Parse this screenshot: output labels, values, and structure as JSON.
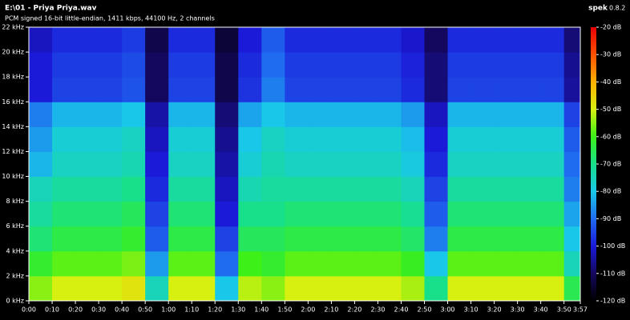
{
  "chart_data": {
    "type": "heatmap",
    "title": "E:\\01 - Priya Priya.wav",
    "subtitle": "PCM signed 16-bit little-endian, 1411 kbps, 44100 Hz, 2 channels",
    "app": "spek",
    "version": "0.8.2",
    "xlim": [
      0,
      237
    ],
    "xticks": [
      {
        "value": 0,
        "label": "0:00"
      },
      {
        "value": 10,
        "label": "0:10"
      },
      {
        "value": 20,
        "label": "0:20"
      },
      {
        "value": 30,
        "label": "0:30"
      },
      {
        "value": 40,
        "label": "0:40"
      },
      {
        "value": 50,
        "label": "0:50"
      },
      {
        "value": 60,
        "label": "1:00"
      },
      {
        "value": 70,
        "label": "1:10"
      },
      {
        "value": 80,
        "label": "1:20"
      },
      {
        "value": 90,
        "label": "1:30"
      },
      {
        "value": 100,
        "label": "1:40"
      },
      {
        "value": 110,
        "label": "1:50"
      },
      {
        "value": 120,
        "label": "2:00"
      },
      {
        "value": 130,
        "label": "2:10"
      },
      {
        "value": 140,
        "label": "2:20"
      },
      {
        "value": 150,
        "label": "2:30"
      },
      {
        "value": 160,
        "label": "2:40"
      },
      {
        "value": 170,
        "label": "2:50"
      },
      {
        "value": 180,
        "label": "3:00"
      },
      {
        "value": 190,
        "label": "3:10"
      },
      {
        "value": 200,
        "label": "3:20"
      },
      {
        "value": 210,
        "label": "3:30"
      },
      {
        "value": 220,
        "label": "3:40"
      },
      {
        "value": 230,
        "label": "3:50"
      },
      {
        "value": 237,
        "label": "3:57"
      }
    ],
    "ylim": [
      0,
      22
    ],
    "yticks": [
      {
        "value": 0,
        "label": "0 kHz"
      },
      {
        "value": 2,
        "label": "2 kHz"
      },
      {
        "value": 4,
        "label": "4 kHz"
      },
      {
        "value": 6,
        "label": "6 kHz"
      },
      {
        "value": 8,
        "label": "8 kHz"
      },
      {
        "value": 10,
        "label": "10 kHz"
      },
      {
        "value": 12,
        "label": "12 kHz"
      },
      {
        "value": 14,
        "label": "14 kHz"
      },
      {
        "value": 16,
        "label": "16 kHz"
      },
      {
        "value": 18,
        "label": "18 kHz"
      },
      {
        "value": 20,
        "label": "20 kHz"
      },
      {
        "value": 22,
        "label": "22 kHz"
      }
    ],
    "clim": [
      -120,
      -20
    ],
    "cticks": [
      {
        "value": -20,
        "label": "-20 dB"
      },
      {
        "value": -30,
        "label": "-30 dB"
      },
      {
        "value": -40,
        "label": "-40 dB"
      },
      {
        "value": -50,
        "label": "-50 dB"
      },
      {
        "value": -60,
        "label": "-60 dB"
      },
      {
        "value": -70,
        "label": "-70 dB"
      },
      {
        "value": -80,
        "label": "-80 dB"
      },
      {
        "value": -90,
        "label": "-90 dB"
      },
      {
        "value": -100,
        "label": "-100 dB"
      },
      {
        "value": -110,
        "label": "-110 dB"
      },
      {
        "value": -120,
        "label": "-120 dB"
      }
    ],
    "colorscale": [
      "#000000",
      "#14085e",
      "#1a1ad8",
      "#1f6cf0",
      "#19c8e8",
      "#18e08a",
      "#3cf018",
      "#d8f010",
      "#ffb000",
      "#ff5000",
      "#e80000"
    ],
    "time_bins": [
      0,
      10,
      20,
      30,
      40,
      50,
      60,
      70,
      80,
      90,
      100,
      110,
      120,
      130,
      140,
      150,
      160,
      170,
      180,
      190,
      200,
      210,
      220,
      230,
      237
    ],
    "freq_bins": [
      0,
      2,
      4,
      6,
      8,
      10,
      12,
      14,
      16,
      18,
      20,
      22
    ],
    "z": [
      [
        -55,
        -50,
        -50,
        -50,
        -48,
        -75,
        -50,
        -50,
        -80,
        -52,
        -55,
        -50,
        -50,
        -50,
        -50,
        -50,
        -53,
        -70,
        -50,
        -50,
        -50,
        -50,
        -50,
        -65
      ],
      [
        -62,
        -58,
        -58,
        -58,
        -56,
        -85,
        -58,
        -58,
        -90,
        -60,
        -62,
        -58,
        -58,
        -58,
        -58,
        -58,
        -61,
        -80,
        -58,
        -58,
        -58,
        -58,
        -58,
        -75
      ],
      [
        -68,
        -64,
        -64,
        -64,
        -62,
        -92,
        -64,
        -64,
        -95,
        -66,
        -66,
        -64,
        -64,
        -64,
        -64,
        -64,
        -67,
        -88,
        -64,
        -64,
        -64,
        -64,
        -64,
        -80
      ],
      [
        -72,
        -68,
        -68,
        -68,
        -66,
        -95,
        -68,
        -68,
        -100,
        -70,
        -70,
        -68,
        -68,
        -68,
        -68,
        -68,
        -71,
        -92,
        -68,
        -68,
        -68,
        -68,
        -68,
        -84
      ],
      [
        -75,
        -72,
        -72,
        -72,
        -70,
        -98,
        -72,
        -72,
        -102,
        -74,
        -72,
        -72,
        -72,
        -72,
        -72,
        -72,
        -75,
        -95,
        -72,
        -72,
        -72,
        -72,
        -72,
        -88
      ],
      [
        -82,
        -76,
        -76,
        -76,
        -74,
        -100,
        -76,
        -76,
        -104,
        -78,
        -74,
        -76,
        -76,
        -76,
        -76,
        -76,
        -79,
        -98,
        -76,
        -76,
        -76,
        -76,
        -76,
        -90
      ],
      [
        -85,
        -78,
        -78,
        -78,
        -76,
        -102,
        -78,
        -78,
        -106,
        -80,
        -76,
        -78,
        -78,
        -78,
        -78,
        -78,
        -81,
        -100,
        -78,
        -78,
        -78,
        -78,
        -78,
        -92
      ],
      [
        -88,
        -82,
        -82,
        -82,
        -80,
        -104,
        -82,
        -82,
        -108,
        -84,
        -80,
        -82,
        -82,
        -82,
        -82,
        -82,
        -85,
        -102,
        -82,
        -82,
        -82,
        -82,
        -82,
        -95
      ],
      [
        -100,
        -95,
        -95,
        -95,
        -93,
        -110,
        -95,
        -95,
        -112,
        -97,
        -88,
        -95,
        -95,
        -95,
        -95,
        -95,
        -98,
        -108,
        -95,
        -95,
        -95,
        -95,
        -95,
        -105
      ],
      [
        -100,
        -96,
        -96,
        -96,
        -94,
        -110,
        -96,
        -96,
        -112,
        -98,
        -90,
        -96,
        -96,
        -96,
        -96,
        -96,
        -99,
        -108,
        -96,
        -96,
        -96,
        -96,
        -96,
        -106
      ],
      [
        -102,
        -98,
        -98,
        -98,
        -96,
        -112,
        -98,
        -98,
        -114,
        -100,
        -92,
        -98,
        -98,
        -98,
        -98,
        -98,
        -101,
        -110,
        -98,
        -98,
        -98,
        -98,
        -98,
        -108
      ]
    ]
  }
}
